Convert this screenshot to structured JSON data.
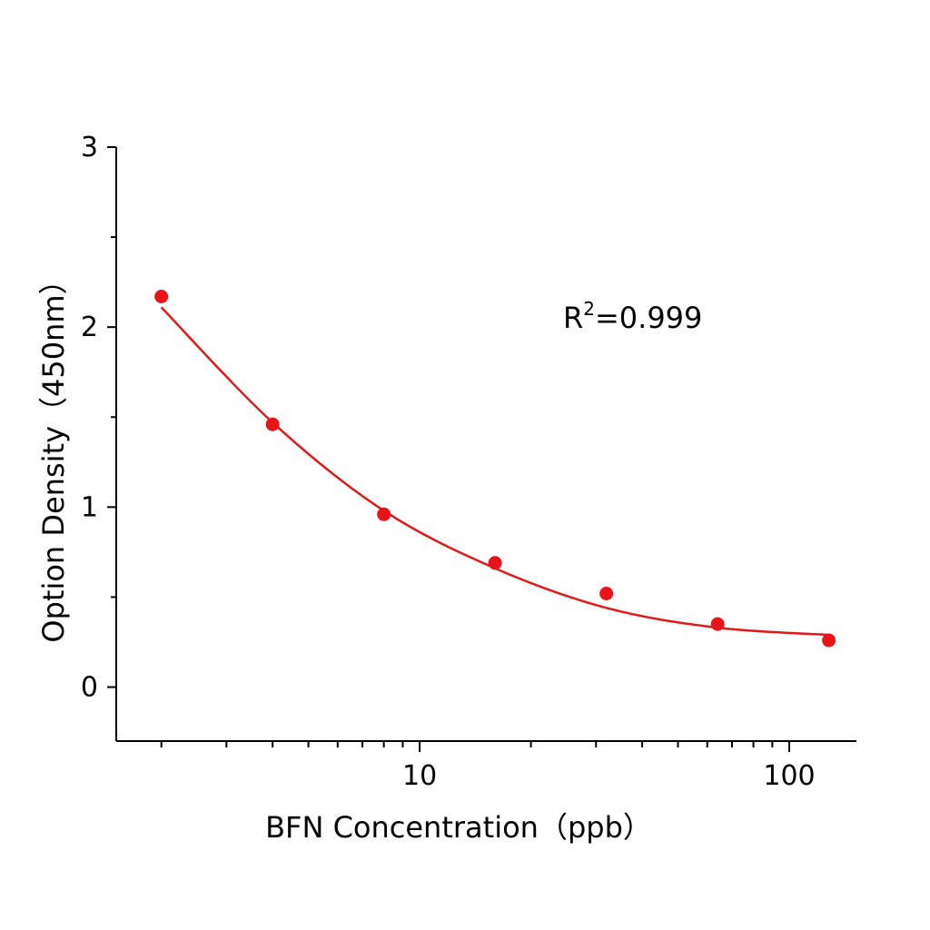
{
  "chart_data": {
    "type": "scatter",
    "xlabel": "BFN  Concentration（ppb）",
    "ylabel": "Option Density（450nm）",
    "xscale": "log",
    "xlim": [
      1.51,
      152
    ],
    "ylim": [
      -0.3,
      3
    ],
    "x_ticks": [
      10,
      100
    ],
    "x_tick_labels": [
      "10",
      "100"
    ],
    "y_ticks": [
      0,
      1,
      2,
      3
    ],
    "y_tick_labels": [
      "0",
      "1",
      "2",
      "3"
    ],
    "grid": false,
    "points": {
      "x": [
        2,
        4,
        8,
        16,
        32,
        64,
        128
      ],
      "y": [
        2.17,
        1.46,
        0.96,
        0.69,
        0.52,
        0.35,
        0.26
      ]
    },
    "fit_curve": {
      "x": [
        2,
        4,
        8,
        16,
        32,
        64,
        128
      ],
      "y": [
        2.11,
        1.47,
        0.98,
        0.66,
        0.44,
        0.33,
        0.29
      ]
    },
    "annotation": {
      "base": "R",
      "sup": "2",
      "rest": "=0.999"
    },
    "colors": {
      "points": "#e8141a",
      "curve": "#e0191b",
      "axis": "#000000"
    }
  }
}
